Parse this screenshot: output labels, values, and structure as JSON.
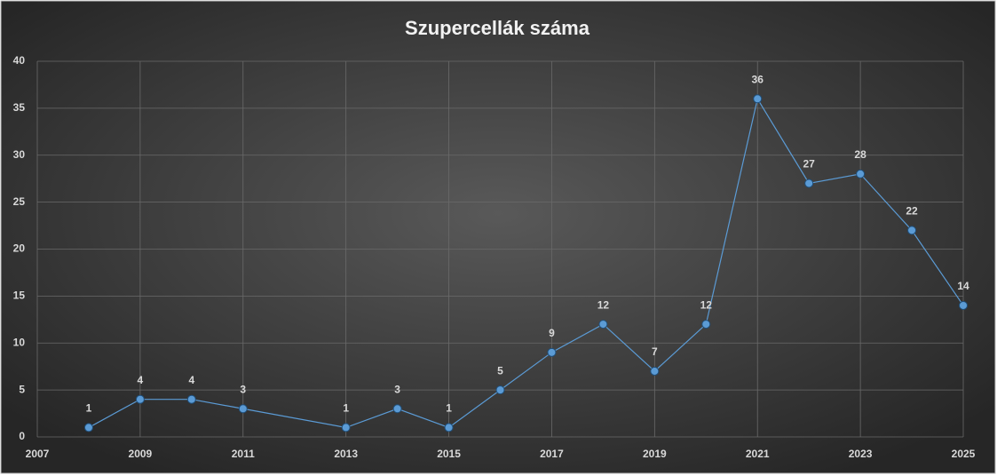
{
  "chart_data": {
    "type": "line",
    "title": "Szupercellák száma",
    "x": [
      2008,
      2009,
      2010,
      2011,
      2013,
      2014,
      2015,
      2016,
      2017,
      2018,
      2019,
      2020,
      2021,
      2022,
      2023,
      2024,
      2025
    ],
    "series": [
      {
        "name": "Szupercellák száma",
        "color": "#5b9bd5",
        "values": [
          1,
          4,
          4,
          3,
          1,
          3,
          1,
          5,
          9,
          12,
          7,
          12,
          36,
          27,
          28,
          22,
          14
        ]
      }
    ],
    "xlim": [
      2007,
      2025
    ],
    "xticks": [
      2007,
      2009,
      2011,
      2013,
      2015,
      2017,
      2019,
      2021,
      2023,
      2025
    ],
    "ylim": [
      0,
      40
    ],
    "yticks": [
      0,
      5,
      10,
      15,
      20,
      25,
      30,
      35,
      40
    ],
    "grid": true
  }
}
